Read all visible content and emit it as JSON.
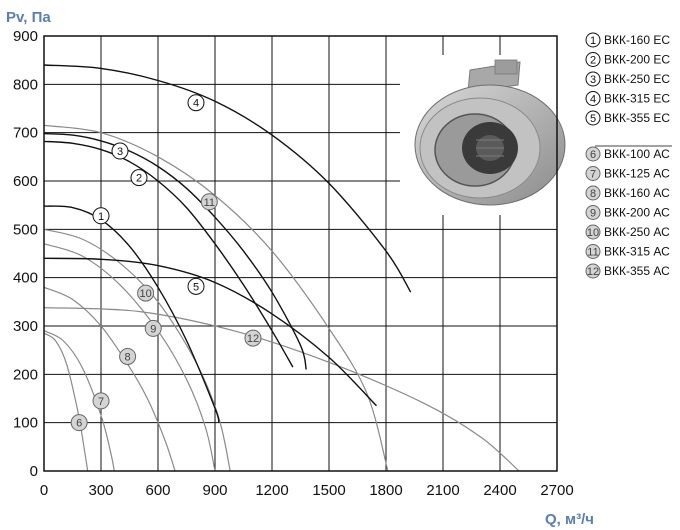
{
  "chart_data": {
    "type": "line",
    "title": "",
    "xlabel": "Q, м³/ч",
    "ylabel": "Pv, Па",
    "xlim": [
      0,
      2700
    ],
    "ylim": [
      0,
      900
    ],
    "x_ticks": [
      0,
      300,
      600,
      900,
      1200,
      1500,
      1800,
      2100,
      2400,
      2700
    ],
    "y_ticks": [
      0,
      100,
      200,
      300,
      400,
      500,
      600,
      700,
      800,
      900
    ],
    "grid": "on",
    "legend_position": "right",
    "colors": {
      "ec": "#111111",
      "ac": "#8a8a8a",
      "ac_marker_fill": "#d4d4d4",
      "axis_title": "#5b7fb0"
    },
    "series": [
      {
        "id": "1",
        "name": "ВКК-160 ЕС",
        "group": "EC",
        "label_at": [
          300,
          528
        ],
        "x": [
          0,
          150,
          300,
          450,
          600,
          750,
          900,
          920
        ],
        "y": [
          548,
          545,
          520,
          465,
          380,
          270,
          130,
          100
        ]
      },
      {
        "id": "2",
        "name": "ВКК-200 ЕС",
        "group": "EC",
        "label_at": [
          500,
          607
        ],
        "x": [
          0,
          150,
          300,
          450,
          600,
          750,
          900,
          1050,
          1200,
          1310
        ],
        "y": [
          682,
          678,
          665,
          640,
          600,
          545,
          470,
          385,
          290,
          215
        ]
      },
      {
        "id": "3",
        "name": "ВКК-250 ЕС",
        "group": "EC",
        "label_at": [
          400,
          662
        ],
        "x": [
          0,
          150,
          300,
          450,
          600,
          750,
          900,
          1050,
          1200,
          1350,
          1380
        ],
        "y": [
          698,
          695,
          683,
          662,
          630,
          585,
          525,
          455,
          370,
          260,
          210
        ]
      },
      {
        "id": "4",
        "name": "ВКК-315 ЕС",
        "group": "EC",
        "label_at": [
          800,
          762
        ],
        "x": [
          0,
          300,
          600,
          900,
          1200,
          1500,
          1800,
          1930
        ],
        "y": [
          840,
          833,
          808,
          765,
          695,
          595,
          455,
          370
        ]
      },
      {
        "id": "5",
        "name": "ВКК-355 ЕС",
        "group": "EC",
        "label_at": [
          800,
          382
        ],
        "x": [
          0,
          300,
          600,
          900,
          1200,
          1500,
          1750
        ],
        "y": [
          440,
          438,
          425,
          390,
          325,
          235,
          135
        ]
      },
      {
        "id": "6",
        "name": "ВКК-100 АС",
        "group": "AC",
        "label_at": [
          185,
          100
        ],
        "x": [
          0,
          60,
          120,
          180,
          210,
          230
        ],
        "y": [
          285,
          270,
          220,
          120,
          50,
          0
        ]
      },
      {
        "id": "7",
        "name": "ВКК-125 АС",
        "group": "AC",
        "label_at": [
          300,
          145
        ],
        "x": [
          0,
          100,
          200,
          300,
          350,
          370
        ],
        "y": [
          290,
          270,
          215,
          115,
          40,
          0
        ]
      },
      {
        "id": "8",
        "name": "ВКК-160 АС",
        "group": "AC",
        "label_at": [
          440,
          237
        ],
        "x": [
          0,
          150,
          300,
          450,
          550,
          640,
          690
        ],
        "y": [
          380,
          355,
          300,
          215,
          145,
          60,
          0
        ]
      },
      {
        "id": "9",
        "name": "ВКК-200 АС",
        "group": "AC",
        "label_at": [
          575,
          295
        ],
        "x": [
          0,
          200,
          400,
          600,
          750,
          850,
          900
        ],
        "y": [
          470,
          445,
          385,
          290,
          190,
          90,
          0
        ]
      },
      {
        "id": "10",
        "name": "ВКК-250 АС",
        "group": "AC",
        "label_at": [
          535,
          368
        ],
        "x": [
          0,
          200,
          400,
          600,
          800,
          920,
          980
        ],
        "y": [
          500,
          480,
          430,
          350,
          225,
          110,
          0
        ]
      },
      {
        "id": "11",
        "name": "ВКК-315 АС",
        "group": "AC",
        "label_at": [
          870,
          557
        ],
        "x": [
          0,
          300,
          600,
          900,
          1200,
          1500,
          1700,
          1810
        ],
        "y": [
          715,
          700,
          650,
          570,
          455,
          295,
          160,
          0
        ]
      },
      {
        "id": "12",
        "name": "ВКК-355 АС",
        "group": "AC",
        "label_at": [
          1100,
          275
        ],
        "x": [
          0,
          500,
          1000,
          1500,
          2000,
          2300,
          2500
        ],
        "y": [
          338,
          330,
          290,
          225,
          140,
          70,
          0
        ]
      }
    ]
  }
}
